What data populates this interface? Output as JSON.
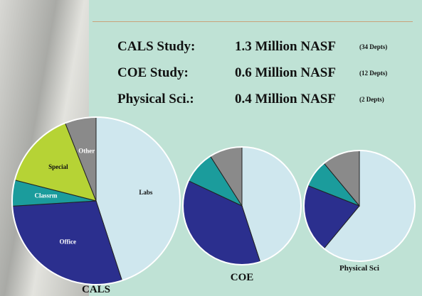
{
  "summary": [
    {
      "label": "CALS Study:",
      "value": "1.3 Million NASF",
      "note": "(34 Depts)"
    },
    {
      "label": "COE Study:",
      "value": "0.6 Million NASF",
      "note": "(12 Depts)"
    },
    {
      "label": "Physical Sci.:",
      "value": "0.4 Million NASF",
      "note": "(2 Depts)"
    }
  ],
  "chart_data": [
    {
      "type": "pie",
      "title": "CALS",
      "categories": [
        "Labs",
        "Office",
        "Classrm",
        "Special",
        "Other"
      ],
      "values": [
        45,
        29,
        5,
        15,
        6
      ],
      "colors": [
        "#cfe7ee",
        "#2b2f8e",
        "#1b9c9c",
        "#b6d335",
        "#8a8a8a"
      ]
    },
    {
      "type": "pie",
      "title": "COE",
      "categories": [
        null,
        null,
        null,
        null
      ],
      "values": [
        45,
        37,
        9,
        9
      ],
      "colors": [
        "#cfe7ee",
        "#2b2f8e",
        "#1b9c9c",
        "#8a8a8a"
      ]
    },
    {
      "type": "pie",
      "title": "Physical Sci",
      "categories": [
        null,
        null,
        null,
        null
      ],
      "values": [
        61,
        20,
        8,
        11
      ],
      "colors": [
        "#cfe7ee",
        "#2b2f8e",
        "#1b9c9c",
        "#8a8a8a"
      ]
    }
  ]
}
